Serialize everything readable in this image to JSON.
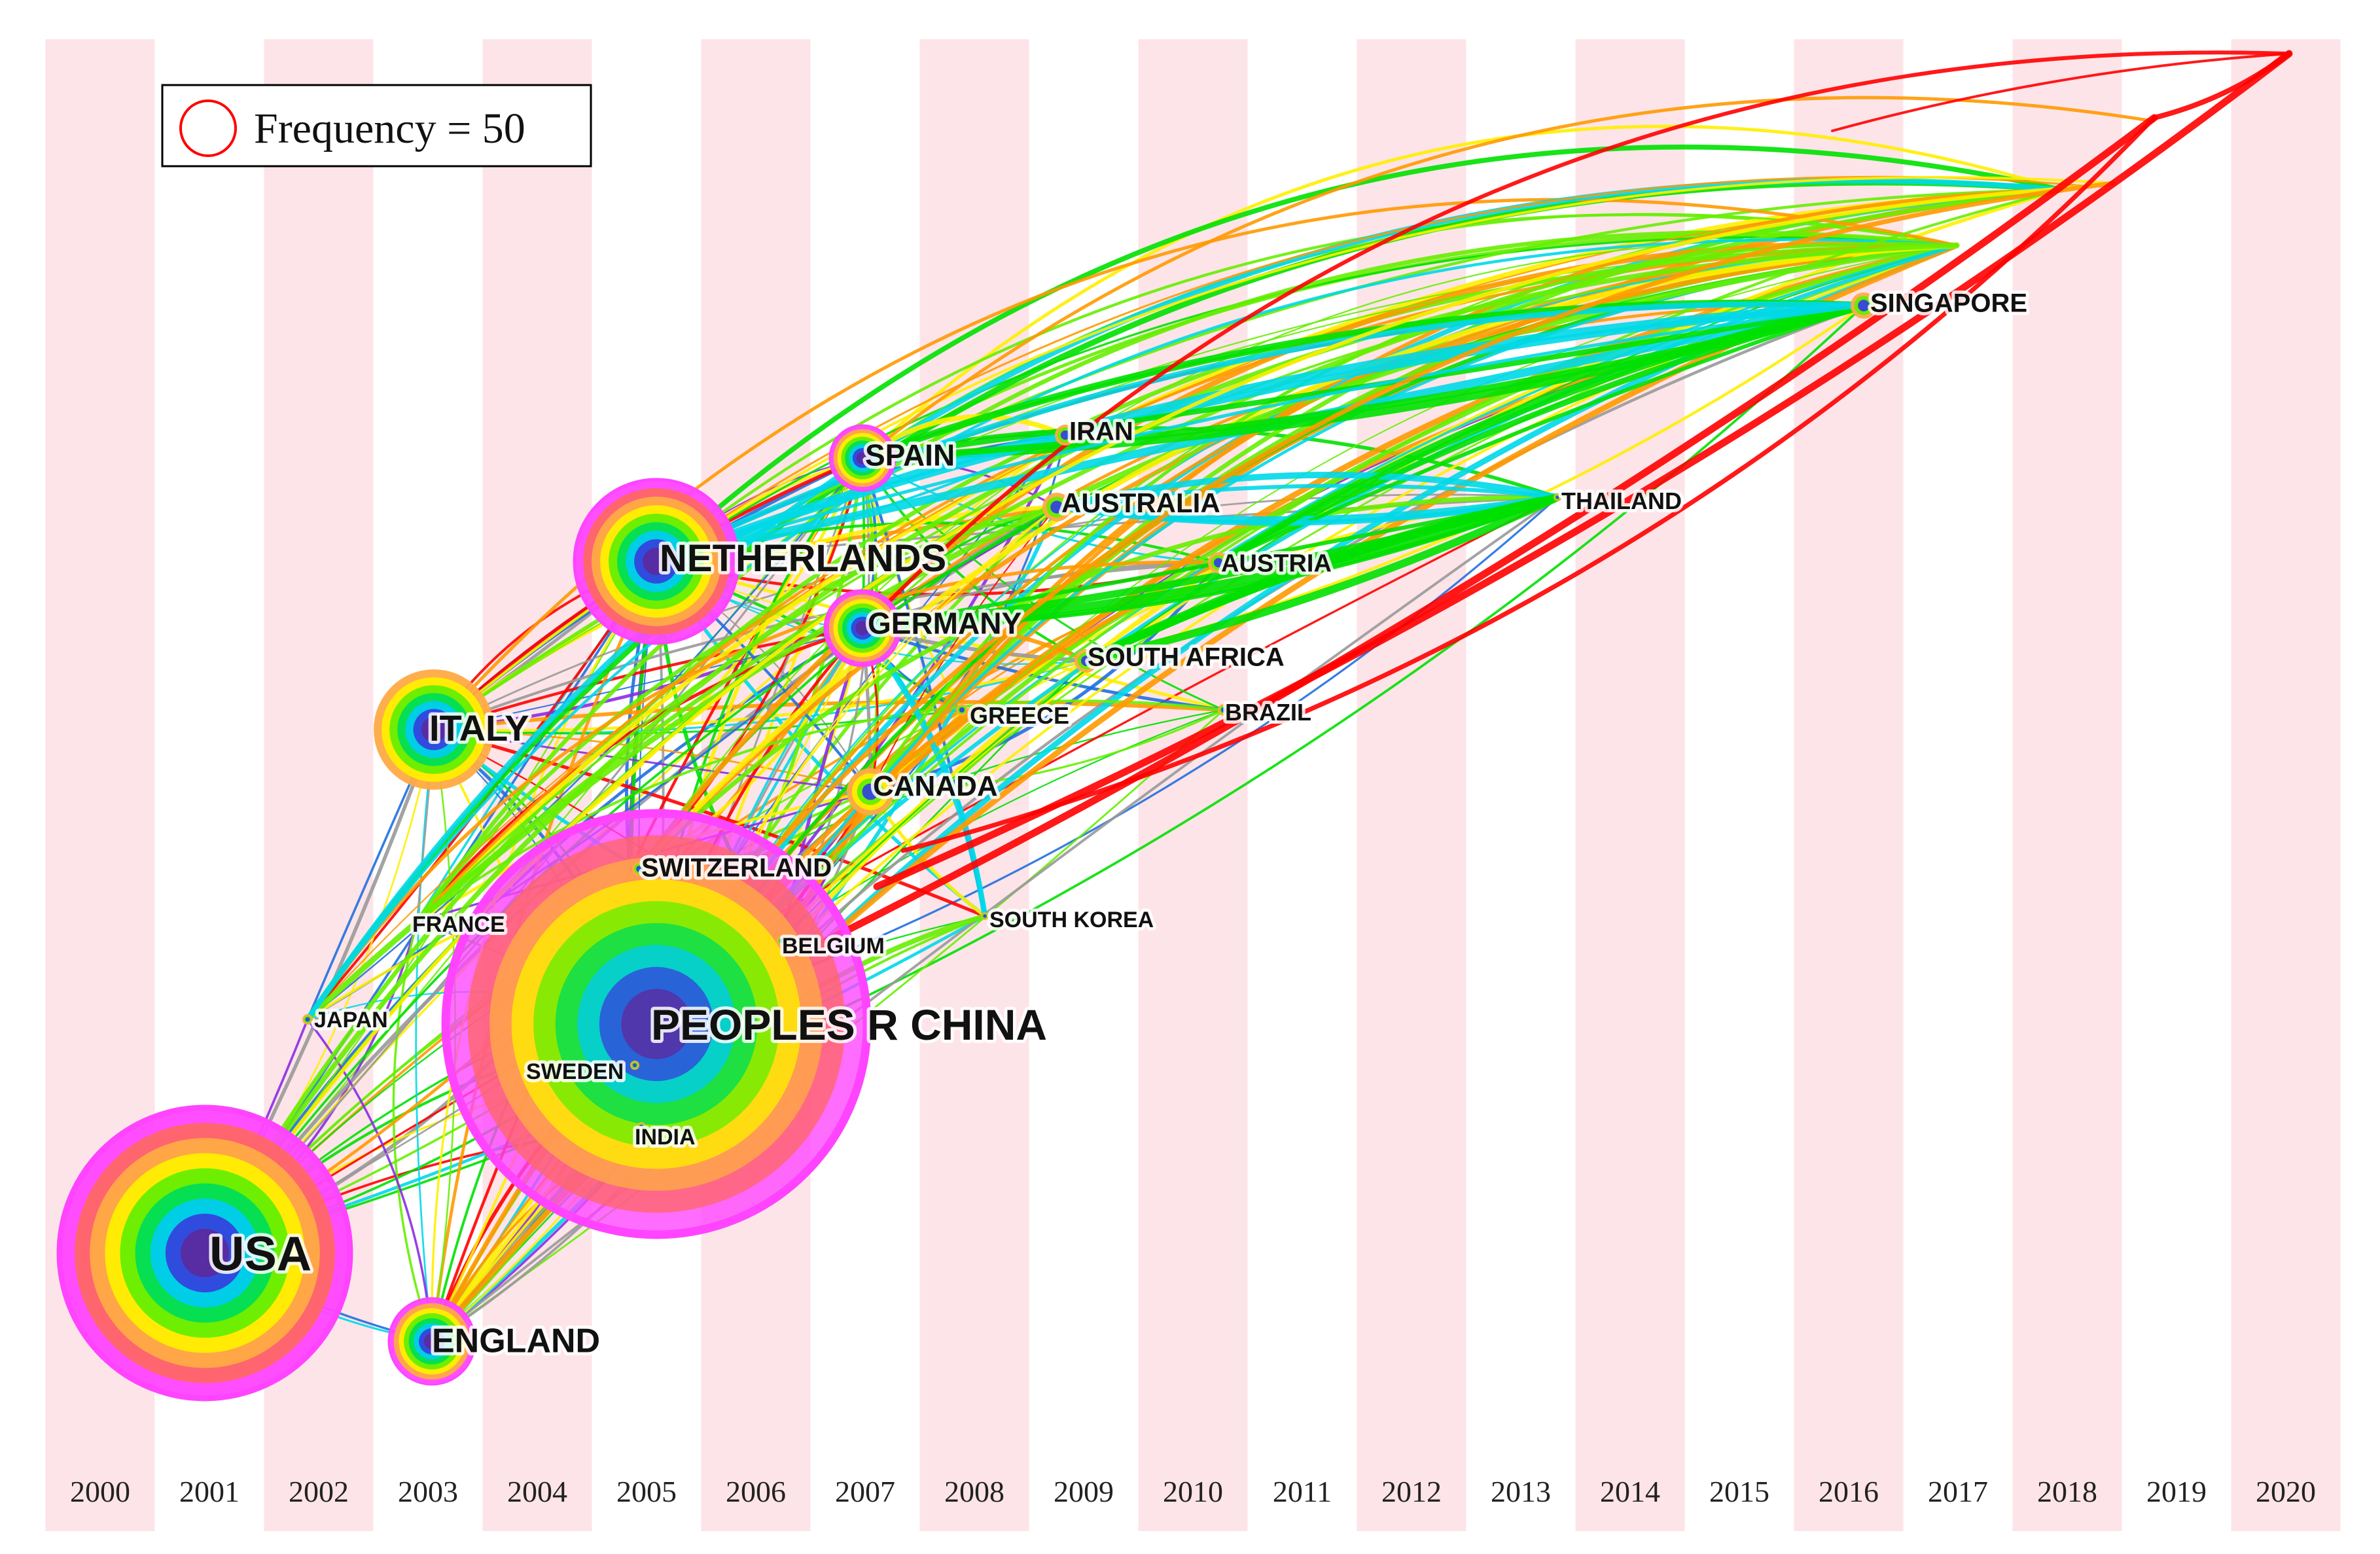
{
  "legend": {
    "label": "Frequency = 50",
    "ring_color": "#ff0000"
  },
  "timeline": {
    "years": [
      "2000",
      "2001",
      "2002",
      "2003",
      "2004",
      "2005",
      "2006",
      "2007",
      "2008",
      "2009",
      "2010",
      "2011",
      "2012",
      "2013",
      "2014",
      "2015",
      "2016",
      "2017",
      "2018",
      "2019",
      "2020"
    ],
    "band_color": "#fde4e8"
  },
  "ring_palette": [
    "#5b2a9e",
    "#3344dd",
    "#00ccee",
    "#00dd55",
    "#66ee00",
    "#ffee00",
    "#ffaa44",
    "#ff6666",
    "#ff44ff"
  ],
  "link_palette": [
    "#999999",
    "#8b2be2",
    "#1f6fe0",
    "#00d8e8",
    "#00e000",
    "#66ee00",
    "#ffee00",
    "#ff9900",
    "#ff0000"
  ],
  "nodes": [
    {
      "id": "usa",
      "label": "USA",
      "year": 2001,
      "size": "xl"
    },
    {
      "id": "china",
      "label": "PEOPLES R CHINA",
      "year": 2005,
      "size": "xxl"
    },
    {
      "id": "netherlands",
      "label": "NETHERLANDS",
      "year": 2005,
      "size": "l"
    },
    {
      "id": "italy",
      "label": "ITALY",
      "year": 2003,
      "size": "m"
    },
    {
      "id": "england",
      "label": "ENGLAND",
      "year": 2003,
      "size": "s"
    },
    {
      "id": "spain",
      "label": "SPAIN",
      "year": 2007,
      "size": "s"
    },
    {
      "id": "germany",
      "label": "GERMANY",
      "year": 2007,
      "size": "s"
    },
    {
      "id": "canada",
      "label": "CANADA",
      "year": 2007,
      "size": "xs"
    },
    {
      "id": "switzerland",
      "label": "SWITZERLAND",
      "year": 2005,
      "size": "xxs"
    },
    {
      "id": "france",
      "label": "FRANCE",
      "year": 2003,
      "size": "xxs"
    },
    {
      "id": "japan",
      "label": "JAPAN",
      "year": 2002,
      "size": "xxs"
    },
    {
      "id": "sweden",
      "label": "SWEDEN",
      "year": 2005,
      "size": "xxs"
    },
    {
      "id": "india",
      "label": "INDIA",
      "year": 2005,
      "size": "xxs"
    },
    {
      "id": "belgium",
      "label": "BELGIUM",
      "year": 2006,
      "size": "xxs"
    },
    {
      "id": "iran",
      "label": "IRAN",
      "year": 2009,
      "size": "xxs"
    },
    {
      "id": "australia",
      "label": "AUSTRALIA",
      "year": 2009,
      "size": "xxs"
    },
    {
      "id": "austria",
      "label": "AUSTRIA",
      "year": 2010,
      "size": "xxs"
    },
    {
      "id": "south_africa",
      "label": "SOUTH AFRICA",
      "year": 2009,
      "size": "xxs"
    },
    {
      "id": "greece",
      "label": "GREECE",
      "year": 2008,
      "size": "xxs"
    },
    {
      "id": "brazil",
      "label": "BRAZIL",
      "year": 2010,
      "size": "xxs"
    },
    {
      "id": "south_korea",
      "label": "SOUTH KOREA",
      "year": 2008,
      "size": "xxs"
    },
    {
      "id": "thailand",
      "label": "THAILAND",
      "year": 2014,
      "size": "xxs"
    },
    {
      "id": "singapore",
      "label": "SINGAPORE",
      "year": 2016,
      "size": "xxs"
    }
  ]
}
